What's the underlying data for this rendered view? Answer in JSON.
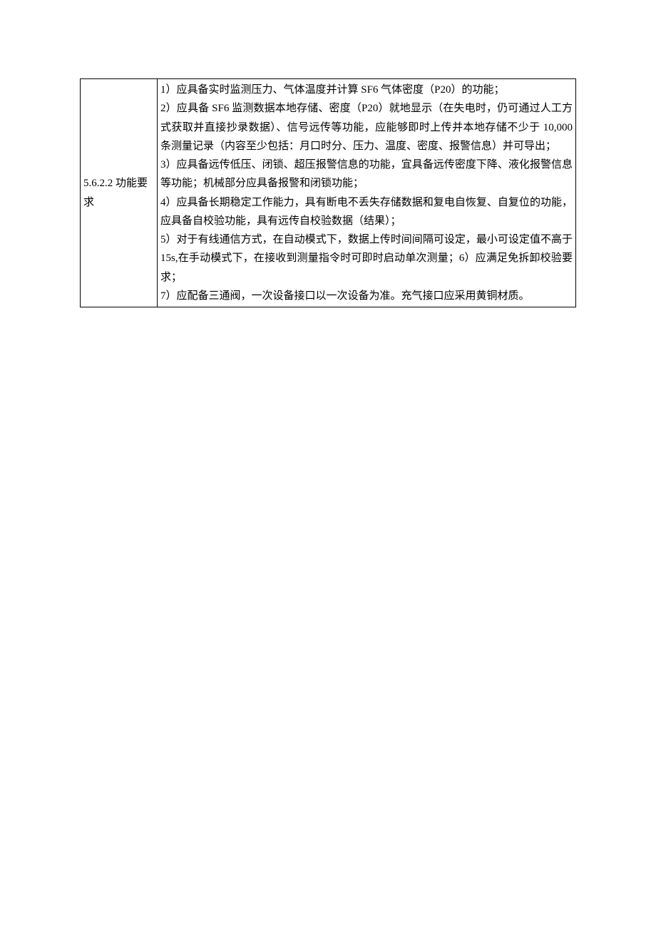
{
  "table": {
    "label_cell": "5.6.2.2 功能要求",
    "items": [
      "1）应具备实时监测压力、气体温度并计算 SF6 气体密度（P20）的功能；",
      "2）应具备 SF6 监测数据本地存储、密度（P20）就地显示（在失电时，仍可通过人工方式获取并直接抄录数据）、信号远传等功能，应能够即时上传并本地存储不少于 10,000 条测量记录（内容至少包括：月口时分、压力、温度、密度、报警信息）并可导出；",
      "3）应具备远传低压、闭锁、超压报警信息的功能，宜具备远传密度下降、液化报警信息等功能；机械部分应具备报警和闭锁功能；",
      "4）应具备长期稳定工作能力，具有断电不丢失存储数据和复电自恢复、自复位的功能，应具备自校验功能，具有远传自校验数据（结果）；",
      "5）对于有线通信方式，在自动模式下，数据上传时间间隔可设定，最小可设定值不高于 15s,在手动模式下，在接收到测量指令时可即时启动单次测量；6）应满足免拆卸校验要求；",
      "7）应配备三通阀，一次设备接口以一次设备为准。充气接口应采用黄铜材质。"
    ]
  },
  "colors": {
    "background": "#ffffff",
    "text": "#000000",
    "border": "#000000"
  },
  "typography": {
    "font_family": "SimSun",
    "font_size_pt": 11,
    "line_height": 1.75
  }
}
